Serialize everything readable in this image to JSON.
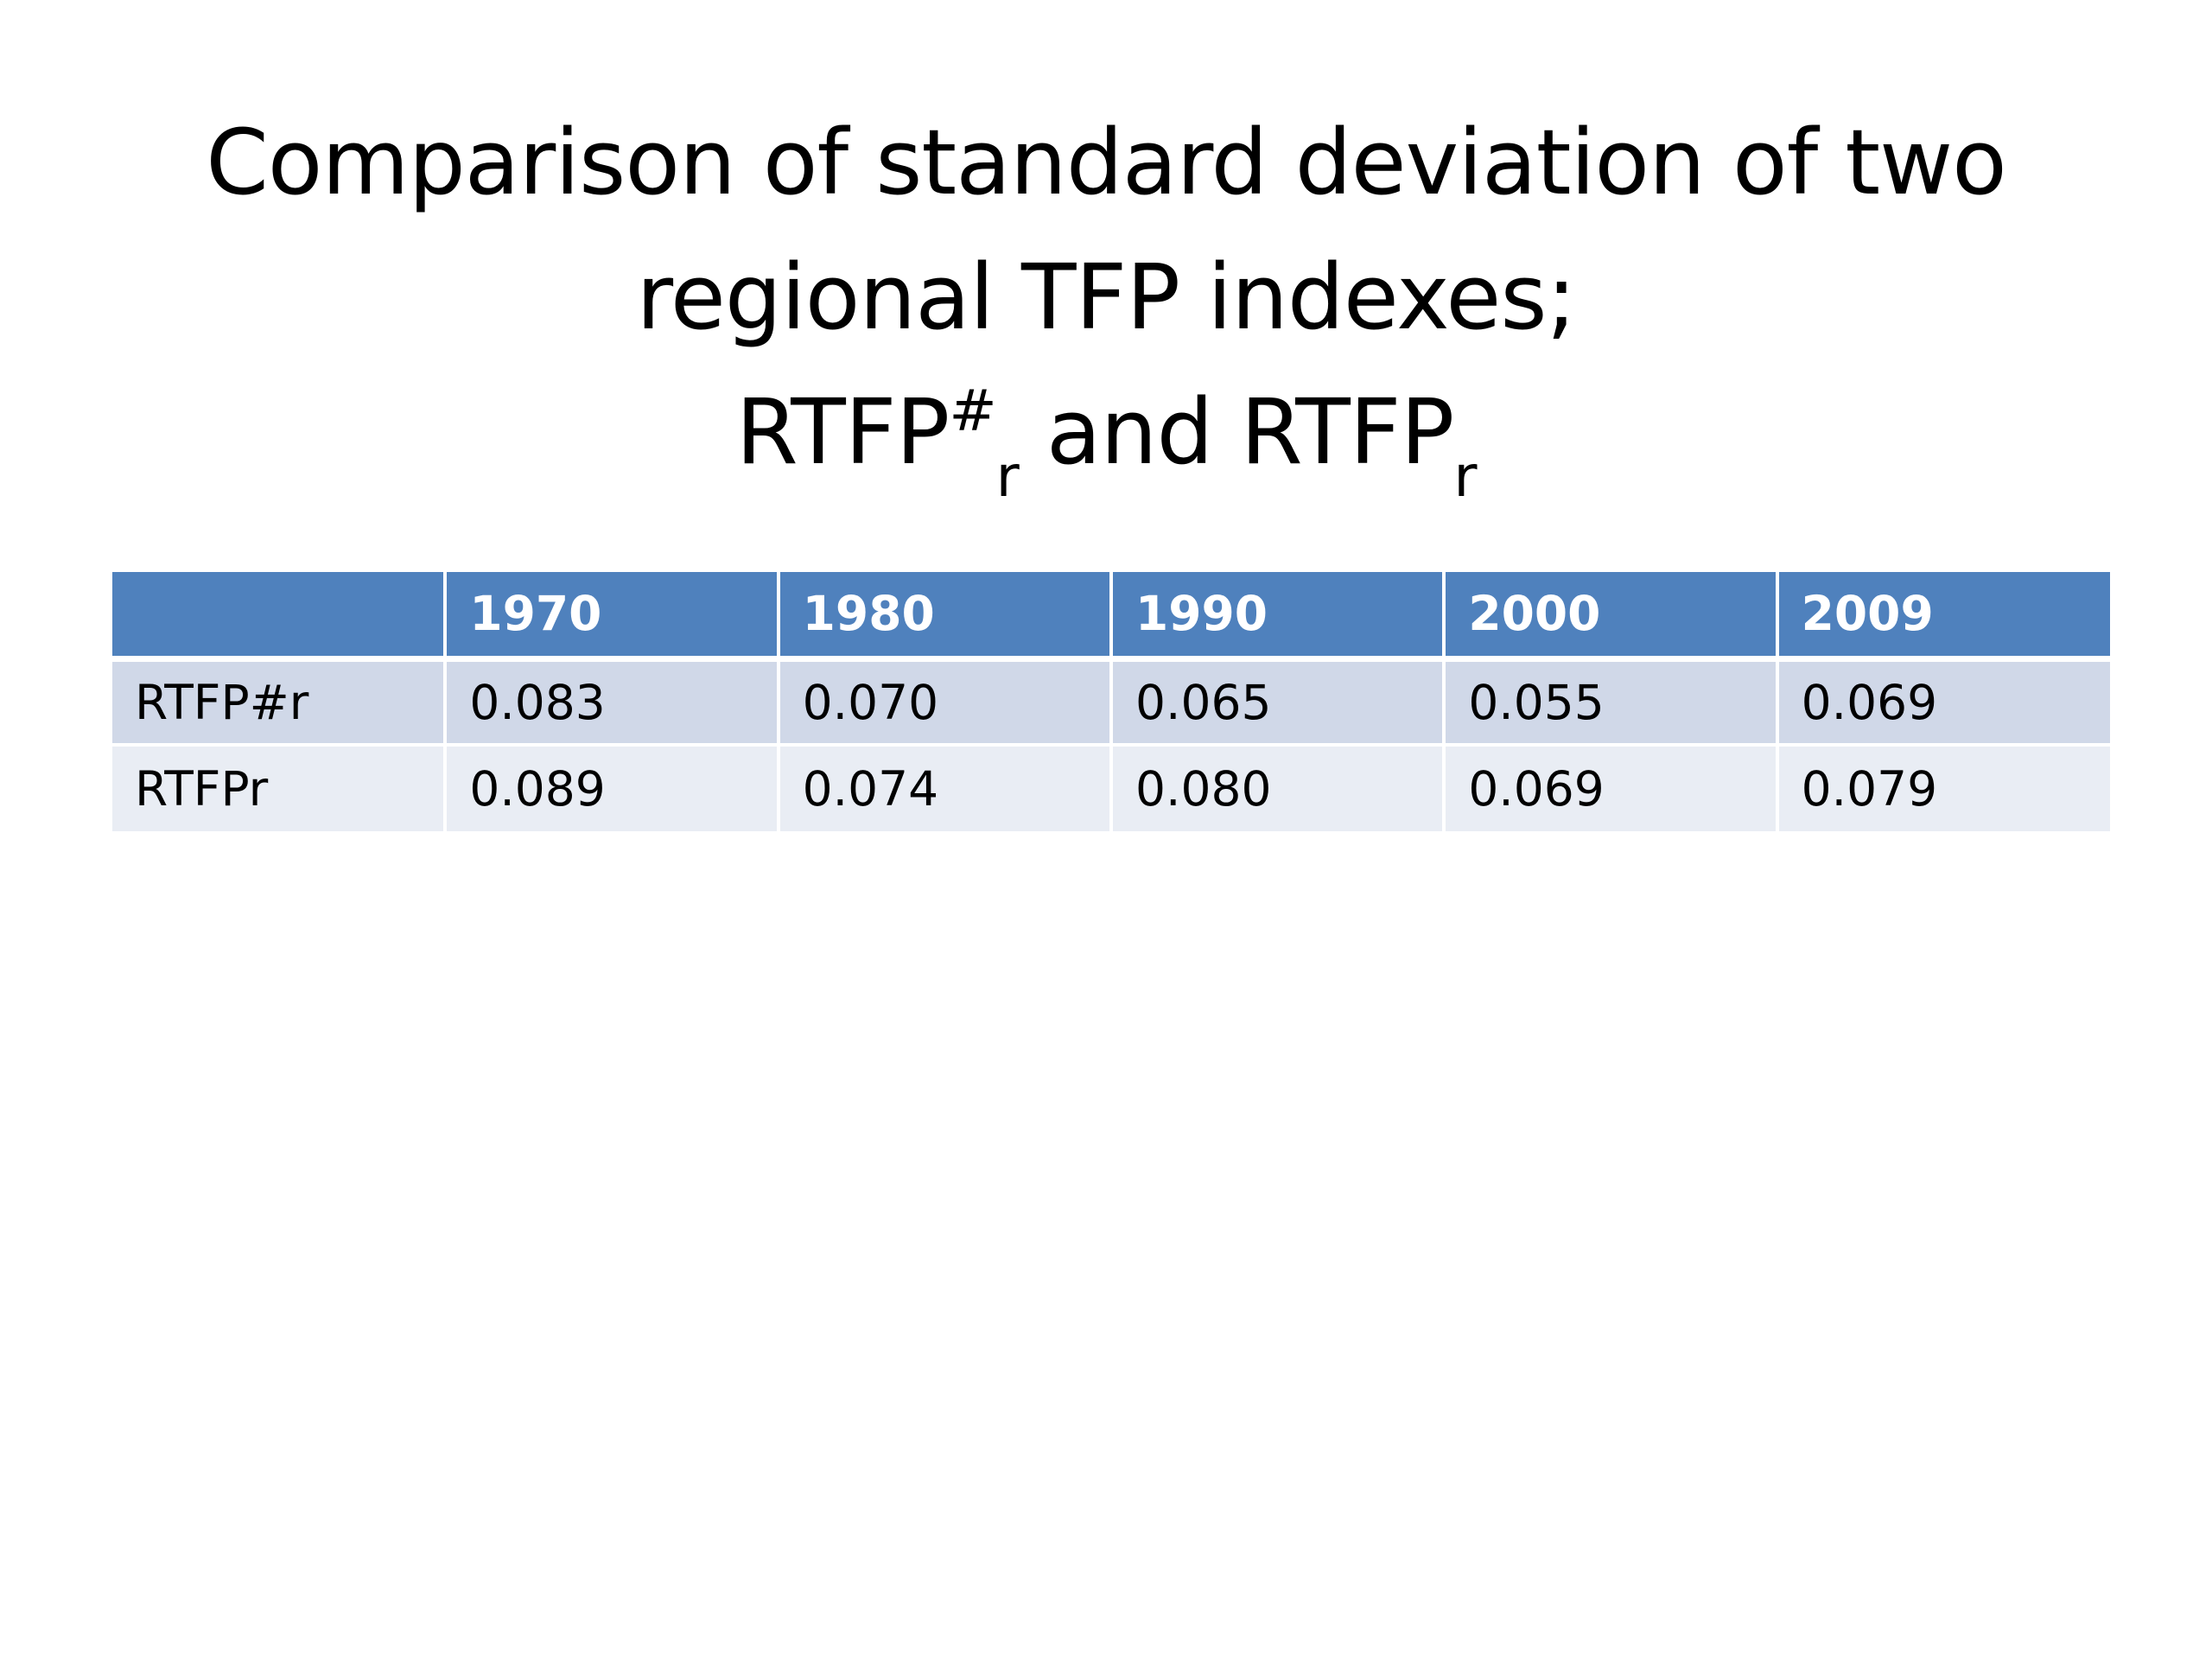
{
  "title": {
    "line1": "Comparison of standard deviation of two",
    "line2": "regional TFP indexes;",
    "line3": {
      "a_base": "RTFP",
      "a_sup": "#",
      "a_sub": "r",
      "and": " and ",
      "b_base": "RTFP",
      "b_sub": "r"
    }
  },
  "table": {
    "corner": "",
    "columns": [
      "1970",
      "1980",
      "1990",
      "2000",
      "2009"
    ],
    "rows": [
      {
        "label": "RTFP#r",
        "values": [
          "0.083",
          "0.070",
          "0.065",
          "0.055",
          "0.069"
        ]
      },
      {
        "label": "RTFPr",
        "values": [
          "0.089",
          "0.074",
          "0.080",
          "0.069",
          "0.079"
        ]
      }
    ]
  },
  "colors": {
    "header_bg": "#4f81bd",
    "row_odd_bg": "#d0d8e8",
    "row_even_bg": "#e9edf4"
  }
}
